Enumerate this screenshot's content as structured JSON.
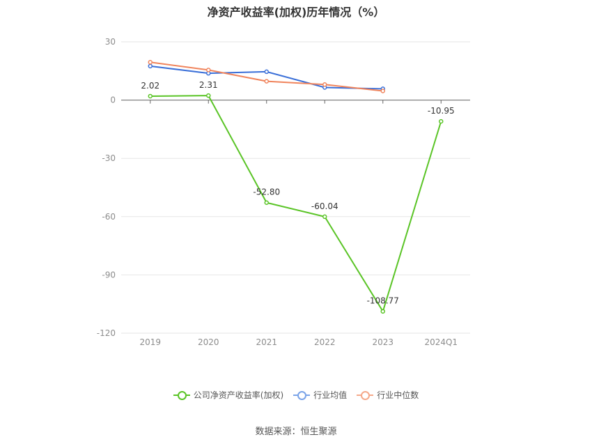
{
  "chart_data": {
    "type": "line",
    "title": "净资产收益率(加权)历年情况（%）",
    "categories": [
      "2019",
      "2020",
      "2021",
      "2022",
      "2023",
      "2024Q1"
    ],
    "ylim": [
      -120,
      30
    ],
    "yticks": [
      30,
      0,
      -30,
      -60,
      -90,
      -120
    ],
    "grid": true,
    "legend_position": "bottom",
    "series": [
      {
        "name": "公司净资产收益率(加权)",
        "color": "#5ac426",
        "values": [
          2.02,
          2.31,
          -52.8,
          -60.04,
          -108.77,
          -10.95
        ],
        "labels": [
          "2.02",
          "2.31",
          "-52.80",
          "-60.04",
          "-108.77",
          "-10.95"
        ]
      },
      {
        "name": "行业均值",
        "color": "#3a6fd8",
        "values": [
          17.5,
          13.8,
          14.6,
          6.5,
          5.8,
          null
        ]
      },
      {
        "name": "行业中位数",
        "color": "#f0845c",
        "values": [
          19.5,
          15.5,
          9.7,
          8.0,
          4.7,
          null
        ]
      }
    ]
  },
  "legend": {
    "items": [
      {
        "label": "公司净资产收益率(加权)",
        "color": "#5ac426"
      },
      {
        "label": "行业均值",
        "color": "#7aa3e8"
      },
      {
        "label": "行业中位数",
        "color": "#f5a98a"
      }
    ]
  },
  "source": "数据来源：恒生聚源"
}
